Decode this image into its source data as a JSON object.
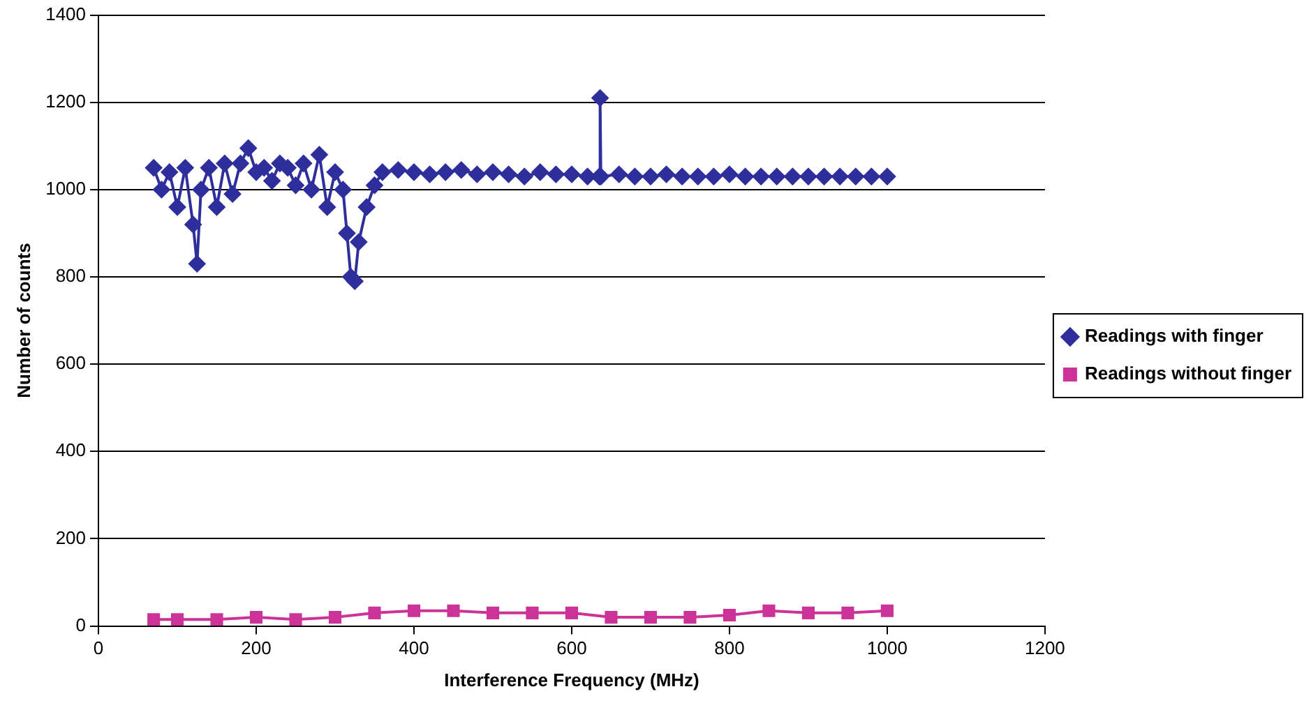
{
  "chart_data": {
    "type": "line",
    "xlabel": "Interference Frequency (MHz)",
    "ylabel": "Number of counts",
    "xlim": [
      0,
      1200
    ],
    "xticks": [
      0,
      200,
      400,
      600,
      800,
      1000,
      1200
    ],
    "ylim": [
      0,
      1400
    ],
    "yticks": [
      0,
      200,
      400,
      600,
      800,
      1000,
      1200,
      1400
    ],
    "grid": "y",
    "legend": "right",
    "line_style": "solid",
    "series": [
      {
        "name": "Readings with finger",
        "color": "#2e2e9c",
        "marker": "diamond",
        "x": [
          70,
          80,
          90,
          100,
          110,
          120,
          125,
          130,
          140,
          150,
          160,
          170,
          180,
          190,
          200,
          210,
          220,
          230,
          240,
          250,
          260,
          270,
          280,
          290,
          300,
          310,
          315,
          320,
          325,
          330,
          340,
          350,
          360,
          380,
          400,
          420,
          440,
          460,
          480,
          500,
          520,
          540,
          560,
          580,
          600,
          620,
          635,
          636,
          637,
          660,
          680,
          700,
          720,
          740,
          760,
          780,
          800,
          820,
          840,
          860,
          880,
          900,
          920,
          940,
          960,
          980,
          1000
        ],
        "values": [
          1050,
          1000,
          1040,
          960,
          1050,
          920,
          830,
          1000,
          1050,
          960,
          1060,
          990,
          1060,
          1095,
          1040,
          1050,
          1020,
          1060,
          1050,
          1010,
          1060,
          1000,
          1080,
          960,
          1040,
          1000,
          900,
          800,
          790,
          880,
          960,
          1010,
          1040,
          1045,
          1040,
          1035,
          1040,
          1045,
          1035,
          1040,
          1035,
          1030,
          1040,
          1035,
          1035,
          1030,
          1030,
          1210,
          1030,
          1035,
          1030,
          1030,
          1035,
          1030,
          1030,
          1030,
          1035,
          1030,
          1030,
          1030,
          1030,
          1030,
          1030,
          1030,
          1030,
          1030,
          1030
        ]
      },
      {
        "name": "Readings without finger",
        "color": "#cc3399",
        "marker": "square",
        "x": [
          70,
          100,
          150,
          200,
          250,
          300,
          350,
          400,
          450,
          500,
          550,
          600,
          650,
          700,
          750,
          800,
          850,
          900,
          950,
          1000
        ],
        "values": [
          15,
          15,
          15,
          20,
          15,
          20,
          30,
          35,
          35,
          30,
          30,
          30,
          20,
          20,
          20,
          25,
          35,
          30,
          30,
          35
        ]
      }
    ]
  }
}
